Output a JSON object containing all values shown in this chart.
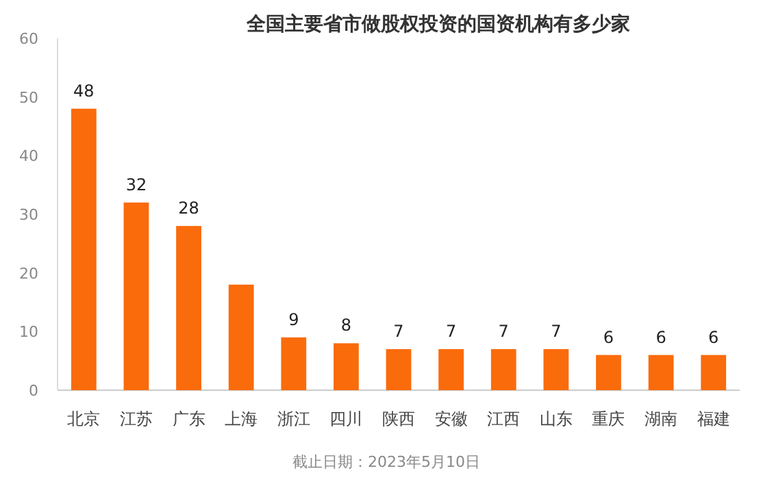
{
  "chart_data": {
    "type": "bar",
    "title": "全国主要省市做股权投资的国资机构有多少家",
    "categories": [
      "北京",
      "江苏",
      "广东",
      "上海",
      "浙江",
      "四川",
      "陕西",
      "安徽",
      "江西",
      "山东",
      "重庆",
      "湖南",
      "福建"
    ],
    "values": [
      48,
      32,
      28,
      18,
      9,
      8,
      7,
      7,
      7,
      7,
      6,
      6,
      6
    ],
    "value_labels": [
      "48",
      "32",
      "28",
      null,
      "9",
      "8",
      "7",
      "7",
      "7",
      "7",
      "6",
      "6",
      "6"
    ],
    "color": "#fa6b0c",
    "ylim": [
      0,
      60
    ],
    "yticks": [
      0,
      10,
      20,
      30,
      40,
      50,
      60
    ],
    "grid": false,
    "annotations": [
      "截止日期：2023年5月10日"
    ]
  }
}
